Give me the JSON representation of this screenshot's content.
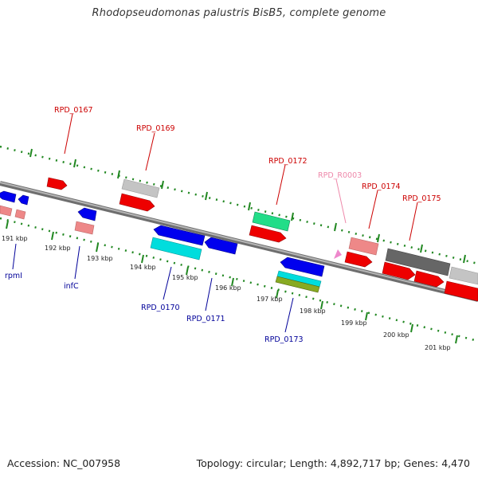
{
  "title": "Rhodopseudomonas palustris BisB5, complete genome",
  "footer": {
    "accession": "Accession: NC_007958",
    "summary": "Topology: circular; Length: 4,892,717 bp; Genes: 4,470"
  },
  "scale": {
    "ticks": [
      "191 kbp",
      "192 kbp",
      "193 kbp",
      "194 kbp",
      "195 kbp",
      "196 kbp",
      "197 kbp",
      "198 kbp",
      "199 kbp",
      "200 kbp",
      "201 kbp"
    ]
  },
  "gene_labels": {
    "top": [
      {
        "text": "RPD_0167",
        "color": "#cc0000"
      },
      {
        "text": "RPD_0169",
        "color": "#cc0000"
      },
      {
        "text": "RPD_0172",
        "color": "#cc0000"
      },
      {
        "text": "RPD_R0003",
        "color": "#ee88aa"
      },
      {
        "text": "RPD_0174",
        "color": "#cc0000"
      },
      {
        "text": "RPD_0175",
        "color": "#cc0000"
      }
    ],
    "bottom": [
      {
        "text": "rpmI",
        "color": "#000099"
      },
      {
        "text": "infC",
        "color": "#000099"
      },
      {
        "text": "RPD_0170",
        "color": "#000099"
      },
      {
        "text": "RPD_0171",
        "color": "#000099"
      },
      {
        "text": "RPD_0173",
        "color": "#000099"
      }
    ]
  },
  "colors": {
    "backbone": "#888888",
    "tick_marks": "#228822",
    "forward_cds": "#ff0000",
    "reverse_cds": "#0000ee",
    "pseudo_light": "#ee8888",
    "grey_feature": "#bbbbbb",
    "dark_grey_feature": "#666666",
    "green_feature": "#22dd88",
    "cyan_feature": "#00dddd",
    "olive_feature": "#88aa22",
    "rna_feature": "#ee88cc"
  }
}
